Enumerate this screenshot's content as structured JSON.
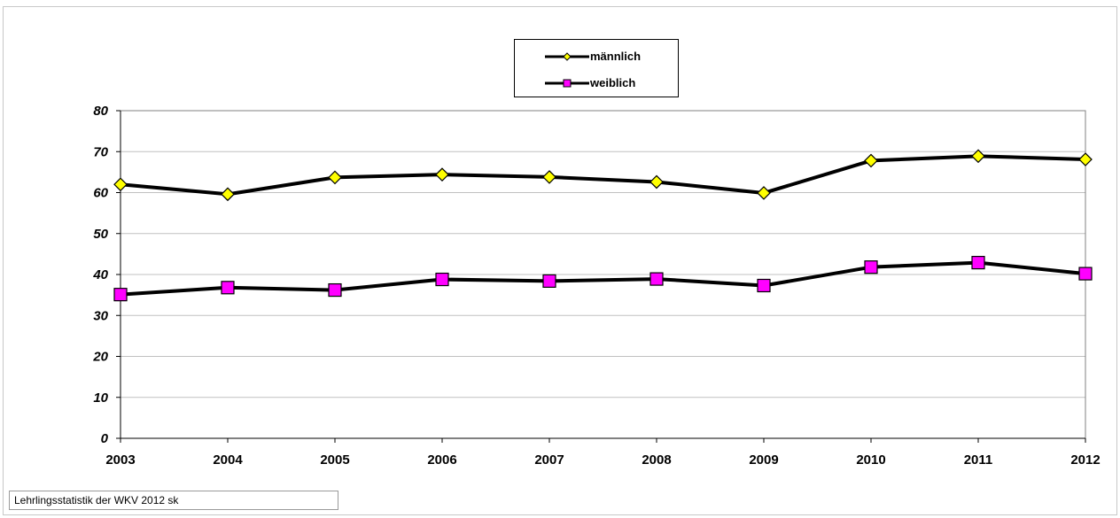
{
  "chart_data": {
    "type": "line",
    "categories": [
      "2003",
      "2004",
      "2005",
      "2006",
      "2007",
      "2008",
      "2009",
      "2010",
      "2011",
      "2012"
    ],
    "series": [
      {
        "name": "männlich",
        "values": [
          62,
          59.6,
          63.7,
          64.4,
          63.8,
          62.6,
          59.9,
          67.8,
          68.9,
          68.1
        ],
        "marker": "diamond",
        "marker_color": "#ffff00"
      },
      {
        "name": "weiblich",
        "values": [
          35.1,
          36.8,
          36.2,
          38.8,
          38.4,
          38.9,
          37.3,
          41.8,
          42.9,
          40.2
        ],
        "marker": "square",
        "marker_color": "#ff00ff"
      }
    ],
    "yticks": [
      "0",
      "10",
      "20",
      "30",
      "40",
      "50",
      "60",
      "70",
      "80"
    ],
    "ylim": [
      0,
      80
    ],
    "grid": true,
    "legend_position": "top-center",
    "line_color": "#000000"
  },
  "source_note": "Lehrlingsstatistik der WKV 2012  sk"
}
